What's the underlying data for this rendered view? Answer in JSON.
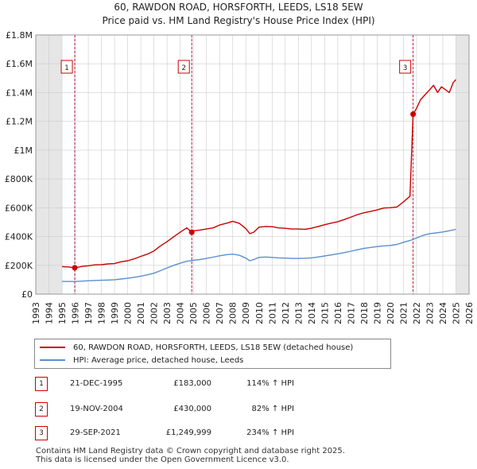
{
  "chart_data": {
    "type": "line",
    "title": "60, RAWDON ROAD, HORSFORTH, LEEDS, LS18 5EW",
    "subtitle": "Price paid vs. HM Land Registry's House Price Index (HPI)",
    "xlim": [
      1993,
      2026
    ],
    "ylim": [
      0,
      1800000
    ],
    "x_ticks": [
      1993,
      1994,
      1995,
      1996,
      1997,
      1998,
      1999,
      2000,
      2001,
      2002,
      2003,
      2004,
      2005,
      2006,
      2007,
      2008,
      2009,
      2010,
      2011,
      2012,
      2013,
      2014,
      2015,
      2016,
      2017,
      2018,
      2019,
      2020,
      2021,
      2022,
      2023,
      2024,
      2025,
      2026
    ],
    "y_ticks": [
      {
        "value": 0,
        "label": "£0"
      },
      {
        "value": 200000,
        "label": "£200K"
      },
      {
        "value": 400000,
        "label": "£400K"
      },
      {
        "value": 600000,
        "label": "£600K"
      },
      {
        "value": 800000,
        "label": "£800K"
      },
      {
        "value": 1000000,
        "label": "£1M"
      },
      {
        "value": 1200000,
        "label": "£1.2M"
      },
      {
        "value": 1400000,
        "label": "£1.4M"
      },
      {
        "value": 1600000,
        "label": "£1.6M"
      },
      {
        "value": 1800000,
        "label": "£1.8M"
      }
    ],
    "grid": true,
    "series": [
      {
        "name": "60, RAWDON ROAD, HORSFORTH, LEEDS, LS18 5EW (detached house)",
        "color": "#cc0000",
        "x": [
          1995.0,
          1995.5,
          1995.97,
          1996.5,
          1997.0,
          1997.5,
          1998.0,
          1998.5,
          1999.0,
          1999.5,
          2000.0,
          2000.5,
          2001.0,
          2001.5,
          2002.0,
          2002.5,
          2003.0,
          2003.5,
          2004.0,
          2004.5,
          2004.88,
          2005.0,
          2005.5,
          2006.0,
          2006.5,
          2007.0,
          2007.5,
          2008.0,
          2008.5,
          2009.0,
          2009.3,
          2009.6,
          2010.0,
          2010.5,
          2011.0,
          2011.5,
          2012.0,
          2012.5,
          2013.0,
          2013.5,
          2014.0,
          2014.5,
          2015.0,
          2015.5,
          2016.0,
          2016.5,
          2017.0,
          2017.5,
          2018.0,
          2018.5,
          2019.0,
          2019.5,
          2020.0,
          2020.5,
          2021.0,
          2021.5,
          2021.74,
          2022.0,
          2022.3,
          2022.6,
          2023.0,
          2023.3,
          2023.6,
          2023.9,
          2024.2,
          2024.5,
          2024.8,
          2025.0
        ],
        "y": [
          191000,
          189000,
          183000,
          192000,
          197000,
          203000,
          205000,
          210000,
          212000,
          225000,
          232000,
          245000,
          262000,
          278000,
          300000,
          335000,
          365000,
          398000,
          430000,
          460000,
          430000,
          440000,
          445000,
          452000,
          460000,
          480000,
          492000,
          506000,
          492000,
          455000,
          420000,
          430000,
          465000,
          470000,
          468000,
          460000,
          457000,
          452000,
          452000,
          450000,
          458000,
          470000,
          482000,
          493000,
          503000,
          518000,
          535000,
          552000,
          565000,
          575000,
          585000,
          598000,
          600000,
          605000,
          640000,
          680000,
          1249999,
          1290000,
          1350000,
          1380000,
          1420000,
          1450000,
          1400000,
          1440000,
          1420000,
          1400000,
          1470000,
          1490000
        ]
      },
      {
        "name": "HPI: Average price, detached house, Leeds",
        "color": "#5b8fd0",
        "x": [
          1995.0,
          1995.5,
          1996.0,
          1996.5,
          1997.0,
          1997.5,
          1998.0,
          1998.5,
          1999.0,
          1999.5,
          2000.0,
          2000.5,
          2001.0,
          2001.5,
          2002.0,
          2002.5,
          2003.0,
          2003.5,
          2004.0,
          2004.5,
          2005.0,
          2005.5,
          2006.0,
          2006.5,
          2007.0,
          2007.5,
          2008.0,
          2008.5,
          2009.0,
          2009.3,
          2009.6,
          2010.0,
          2010.5,
          2011.0,
          2011.5,
          2012.0,
          2012.5,
          2013.0,
          2013.5,
          2014.0,
          2014.5,
          2015.0,
          2015.5,
          2016.0,
          2016.5,
          2017.0,
          2017.5,
          2018.0,
          2018.5,
          2019.0,
          2019.5,
          2020.0,
          2020.5,
          2021.0,
          2021.5,
          2022.0,
          2022.5,
          2023.0,
          2023.5,
          2024.0,
          2024.5,
          2025.0
        ],
        "y": [
          88000,
          88000,
          87000,
          90000,
          93000,
          95000,
          96000,
          98000,
          100000,
          105000,
          110000,
          117000,
          125000,
          134000,
          145000,
          163000,
          182000,
          200000,
          215000,
          228000,
          235000,
          240000,
          248000,
          257000,
          266000,
          274000,
          278000,
          270000,
          250000,
          232000,
          240000,
          255000,
          258000,
          255000,
          252000,
          250000,
          248000,
          248000,
          249000,
          252000,
          258000,
          265000,
          272000,
          280000,
          288000,
          298000,
          308000,
          318000,
          324000,
          330000,
          335000,
          338000,
          345000,
          360000,
          372000,
          390000,
          408000,
          420000,
          425000,
          432000,
          440000,
          450000
        ]
      }
    ],
    "sale_markers": [
      {
        "label": "1",
        "x": 1995.97,
        "y": 183000
      },
      {
        "label": "2",
        "x": 2004.88,
        "y": 430000
      },
      {
        "label": "3",
        "x": 2021.74,
        "y": 1249999
      }
    ],
    "shaded_regions": [
      [
        1993,
        1995.0
      ],
      [
        2025.0,
        2026
      ]
    ]
  },
  "legend": {
    "property_label": "60, RAWDON ROAD, HORSFORTH, LEEDS, LS18 5EW (detached house)",
    "hpi_label": "HPI: Average price, detached house, Leeds"
  },
  "sales": [
    {
      "num": "1",
      "date": "21-DEC-1995",
      "price": "£183,000",
      "hpi": "114% ↑ HPI"
    },
    {
      "num": "2",
      "date": "19-NOV-2004",
      "price": "£430,000",
      "hpi": "82% ↑ HPI"
    },
    {
      "num": "3",
      "date": "29-SEP-2021",
      "price": "£1,249,999",
      "hpi": "234% ↑ HPI"
    }
  ],
  "footer": {
    "line1": "Contains HM Land Registry data © Crown copyright and database right 2025.",
    "line2": "This data is licensed under the Open Government Licence v3.0."
  }
}
